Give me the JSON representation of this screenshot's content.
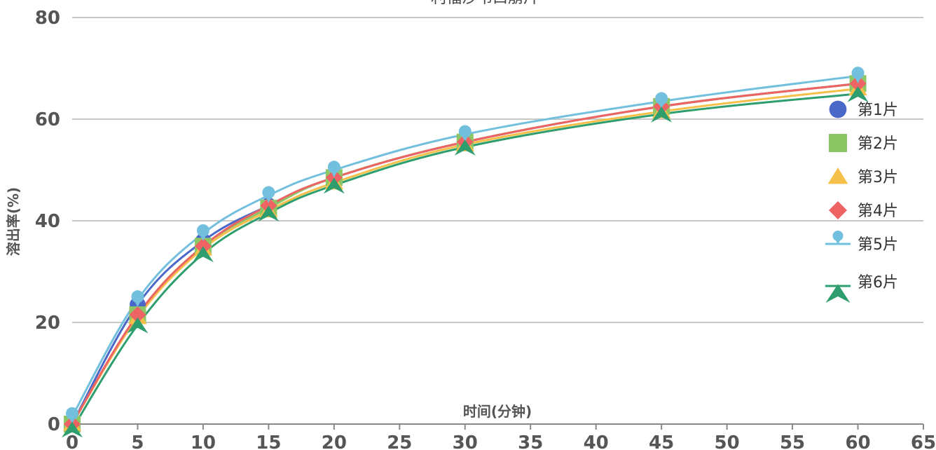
{
  "chart_data": {
    "type": "line",
    "title": "利福沙韦口崩片",
    "xlabel": "时间(分钟)",
    "ylabel": "溶出率(%)",
    "xlim": [
      0,
      65
    ],
    "ylim": [
      0,
      80
    ],
    "x_ticks": [
      0,
      5,
      10,
      15,
      20,
      25,
      30,
      35,
      40,
      45,
      50,
      55,
      60,
      65
    ],
    "y_ticks": [
      0,
      20,
      40,
      60,
      80
    ],
    "grid": "horizontal",
    "legend_position": "right",
    "x": [
      0,
      5,
      10,
      15,
      20,
      30,
      45,
      60
    ],
    "series": [
      {
        "name": "第1片",
        "marker": "circle",
        "color": "#4a68c8",
        "values": [
          0,
          23.5,
          36,
          43,
          48.5,
          55.5,
          62.5,
          67
        ]
      },
      {
        "name": "第2片",
        "marker": "square",
        "color": "#8cc665",
        "values": [
          0,
          21.5,
          35,
          42.5,
          48.5,
          55.5,
          62.5,
          67
        ]
      },
      {
        "name": "第3片",
        "marker": "triangle",
        "color": "#f5c04a",
        "values": [
          0,
          21,
          34.5,
          42,
          47.5,
          55,
          61.5,
          66
        ]
      },
      {
        "name": "第4片",
        "marker": "diamond",
        "color": "#ee6464",
        "values": [
          0,
          21.5,
          35,
          43,
          48.5,
          55.5,
          62.5,
          67
        ]
      },
      {
        "name": "第5片",
        "marker": "pin",
        "color": "#73c0de",
        "values": [
          1.5,
          24.5,
          37.5,
          45,
          50,
          57,
          63.5,
          68.5
        ]
      },
      {
        "name": "第6片",
        "marker": "arrow",
        "color": "#2f9e6e",
        "values": [
          -1,
          19.5,
          33.5,
          41.5,
          47,
          54.5,
          61,
          65
        ]
      }
    ]
  }
}
